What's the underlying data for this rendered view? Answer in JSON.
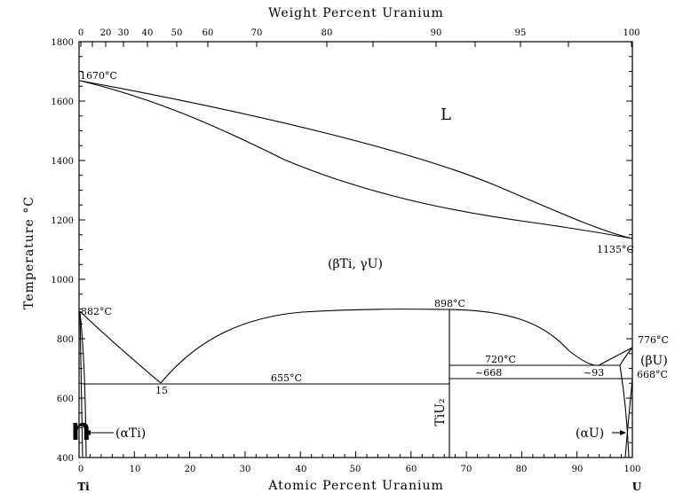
{
  "diagram": {
    "top_axis_title": "Weight Percent Uranium",
    "bottom_axis_title": "Atomic Percent Uranium",
    "y_axis_title": "Temperature °C",
    "y_ticks": [
      "1800",
      "1600",
      "1400",
      "1200",
      "1000",
      "800",
      "600",
      "400"
    ],
    "x_ticks": [
      "0",
      "10",
      "20",
      "30",
      "40",
      "50",
      "60",
      "70",
      "80",
      "90",
      "100"
    ],
    "top_ticks": [
      "0",
      "20",
      "30",
      "40",
      "50",
      "60",
      "70",
      "80",
      "90",
      "95",
      "100"
    ],
    "left_element": "Ti",
    "right_element": "U",
    "point_labels": {
      "ti_melt": "1670°C",
      "u_melt": "1135°C",
      "ti_trans": "882°C",
      "ticu_max": "898°C",
      "eutectoid_temp": "655°C",
      "eutectoid_comp": "15",
      "u_eutectoid_temp": "720°C",
      "u_eutectoid_comp": "~93",
      "u_beta_gamma": "776°C",
      "u_alpha_beta": "668°C",
      "peritectoid": "~668"
    },
    "phase_labels": {
      "liquid": "L",
      "bcc": "(βTi, γU)",
      "alpha_ti": "(αTi)",
      "alpha_u": "(αU)",
      "beta_u": "(βU)",
      "compound": "TiU₂"
    },
    "fragment": "n"
  }
}
